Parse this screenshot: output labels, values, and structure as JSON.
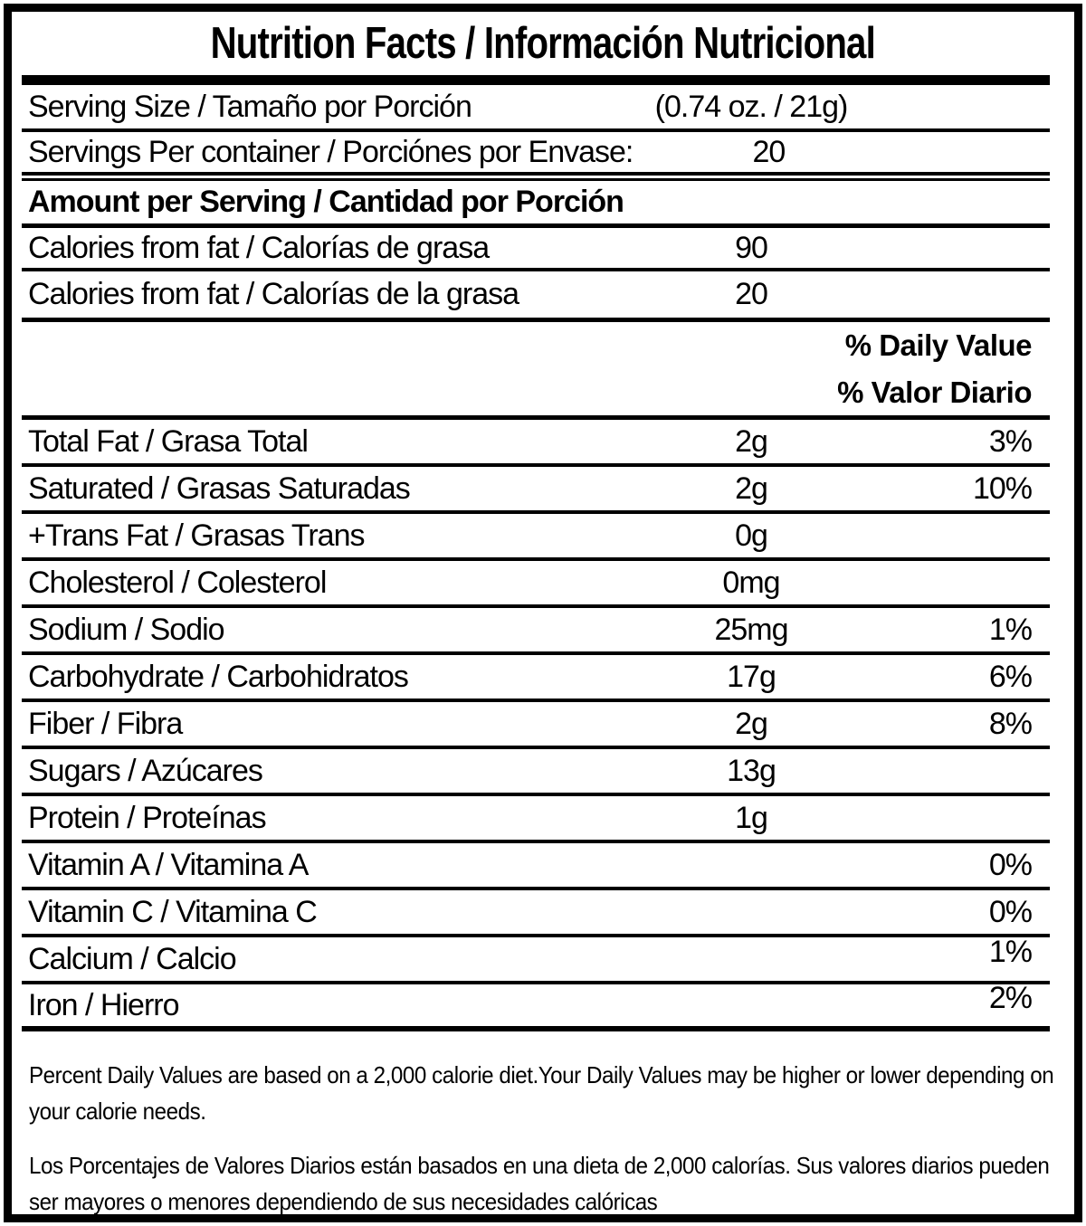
{
  "title": "Nutrition Facts / Información Nutricional",
  "serving": {
    "size_label": "Serving Size / Tamaño por Porción",
    "size_value": "(0.74 oz. / 21g)",
    "per_container_label": "Servings Per container / Porciónes por Envase:",
    "per_container_value": "20"
  },
  "amount_header": "Amount per Serving / Cantidad por Porción",
  "calories_rows": [
    {
      "label": "Calories from fat / Calorías de grasa",
      "value": "90"
    },
    {
      "label": "Calories from fat / Calorías de la grasa",
      "value": "20"
    }
  ],
  "daily_value_header": {
    "en": "% Daily Value",
    "es": "% Valor Diario"
  },
  "nutrients": [
    {
      "label": "Total Fat / Grasa Total",
      "value": "2g",
      "percent": "3%"
    },
    {
      "label": "Saturated / Grasas Saturadas",
      "value": "2g",
      "percent": "10%"
    },
    {
      "label": "+Trans Fat / Grasas Trans",
      "value": "0g",
      "percent": ""
    },
    {
      "label": "Cholesterol / Colesterol",
      "value": "0mg",
      "percent": ""
    },
    {
      "label": "Sodium / Sodio",
      "value": "25mg",
      "percent": "1%"
    },
    {
      "label": "Carbohydrate / Carbohidratos",
      "value": "17g",
      "percent": "6%"
    },
    {
      "label": "Fiber / Fibra",
      "value": "2g",
      "percent": "8%"
    },
    {
      "label": "Sugars / Azúcares",
      "value": "13g",
      "percent": ""
    },
    {
      "label": "Protein / Proteínas",
      "value": "1g",
      "percent": ""
    },
    {
      "label": "Vitamin A / Vitamina A",
      "value": "",
      "percent": "0%"
    },
    {
      "label": "Vitamin C / Vitamina C",
      "value": "",
      "percent": "0%"
    },
    {
      "label": "Calcium / Calcio",
      "value": "",
      "percent": "1%"
    },
    {
      "label": "Iron / Hierro",
      "value": "",
      "percent": "2%"
    }
  ],
  "footnotes": {
    "en": "Percent Daily Values are based on a 2,000 calorie diet.Your Daily Values may be higher or lower depending on your calorie needs.",
    "es": "Los Porcentajes de Valores Diarios están basados en una dieta de 2,000 calorías. Sus valores diarios pueden ser mayores o menores dependiendo de sus necesidades calóricas"
  },
  "colors": {
    "ink": "#000000",
    "background": "#ffffff"
  }
}
